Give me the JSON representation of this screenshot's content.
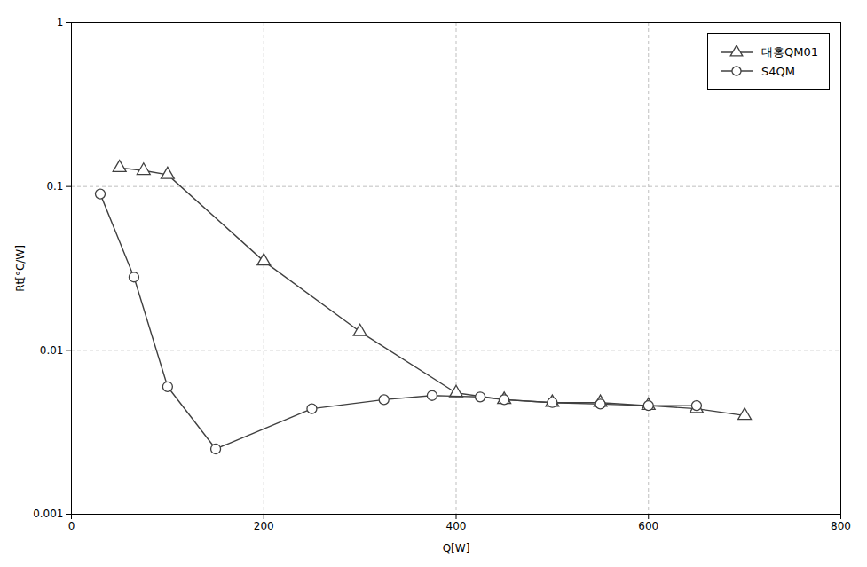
{
  "chart_data": {
    "type": "line",
    "xlabel": "Q[W]",
    "ylabel": "Rt[°C/W]",
    "log": "y",
    "grid": true,
    "legend": "upper right",
    "xlim": [
      0,
      800
    ],
    "xticks": [
      0,
      200,
      400,
      600,
      800
    ],
    "ylim": [
      0.001,
      1
    ],
    "yticks": [
      0.001,
      0.01,
      0.1,
      1
    ],
    "series": [
      {
        "name": "대홍QM01",
        "color": "#404040",
        "marker": "triangle",
        "x": [
          50,
          75,
          100,
          200,
          300,
          400,
          450,
          500,
          550,
          600,
          650,
          700
        ],
        "values": [
          0.13,
          0.125,
          0.118,
          0.035,
          0.013,
          0.0055,
          0.005,
          0.0048,
          0.0048,
          0.0046,
          0.0044,
          0.004
        ]
      },
      {
        "name": "S4QM",
        "color": "#404040",
        "marker": "circle",
        "x": [
          30,
          65,
          100,
          150,
          250,
          325,
          375,
          425,
          450,
          500,
          550,
          600,
          650
        ],
        "values": [
          0.09,
          0.028,
          0.006,
          0.0025,
          0.0044,
          0.005,
          0.0053,
          0.0052,
          0.005,
          0.0048,
          0.0047,
          0.0046,
          0.0046
        ]
      }
    ]
  }
}
